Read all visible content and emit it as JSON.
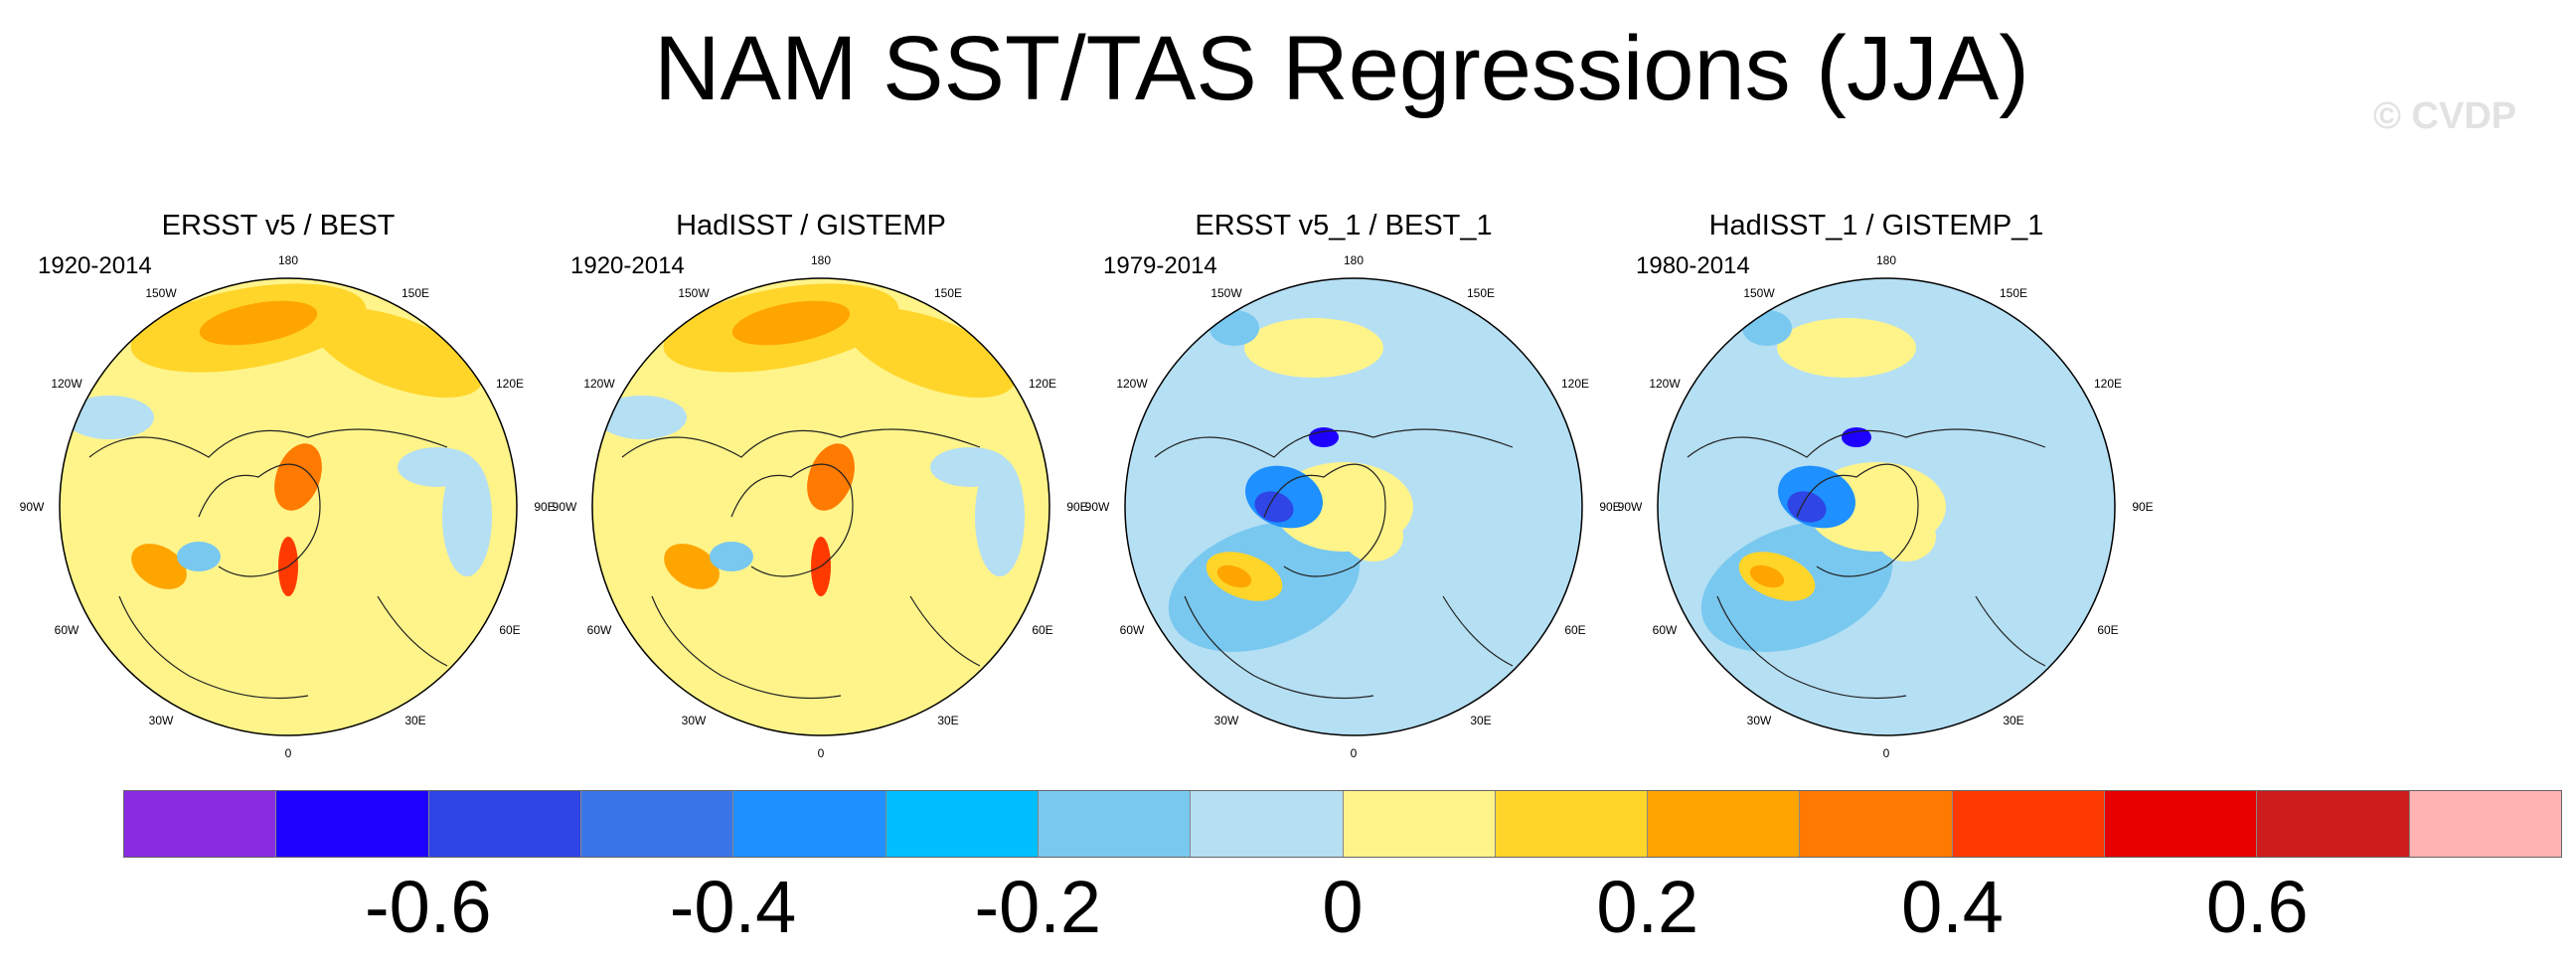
{
  "title": "NAM SST/TAS Regressions (JJA)",
  "watermark": "© CVDP",
  "panels": [
    {
      "title": "ERSST v5 / BEST",
      "period": "1920-2014",
      "pattern": "warm"
    },
    {
      "title": "HadISST / GISTEMP",
      "period": "1920-2014",
      "pattern": "warm"
    },
    {
      "title": "ERSST v5_1 / BEST_1",
      "period": "1979-2014",
      "pattern": "cool"
    },
    {
      "title": "HadISST_1 / GISTEMP_1",
      "period": "1980-2014",
      "pattern": "cool"
    }
  ],
  "longitude_labels": [
    "180",
    "150E",
    "120E",
    "90E",
    "60E",
    "30E",
    "0",
    "30W",
    "60W",
    "90W",
    "120W",
    "150W"
  ],
  "colorbar": {
    "colors": [
      "#8a2be2",
      "#1e00ff",
      "#2f45e6",
      "#3a75e8",
      "#1e90ff",
      "#00bfff",
      "#79c8f0",
      "#b5dff3",
      "#fff48a",
      "#ffd52a",
      "#ffa500",
      "#ff7a00",
      "#ff3a00",
      "#e60000",
      "#cd1c1c",
      "#ffb3b3"
    ],
    "label_values": [
      -0.6,
      -0.4,
      -0.2,
      0,
      0.2,
      0.4,
      0.6
    ],
    "labels": [
      "-0.6",
      "-0.4",
      "-0.2",
      "0",
      "0.2",
      "0.4",
      "0.6"
    ]
  }
}
